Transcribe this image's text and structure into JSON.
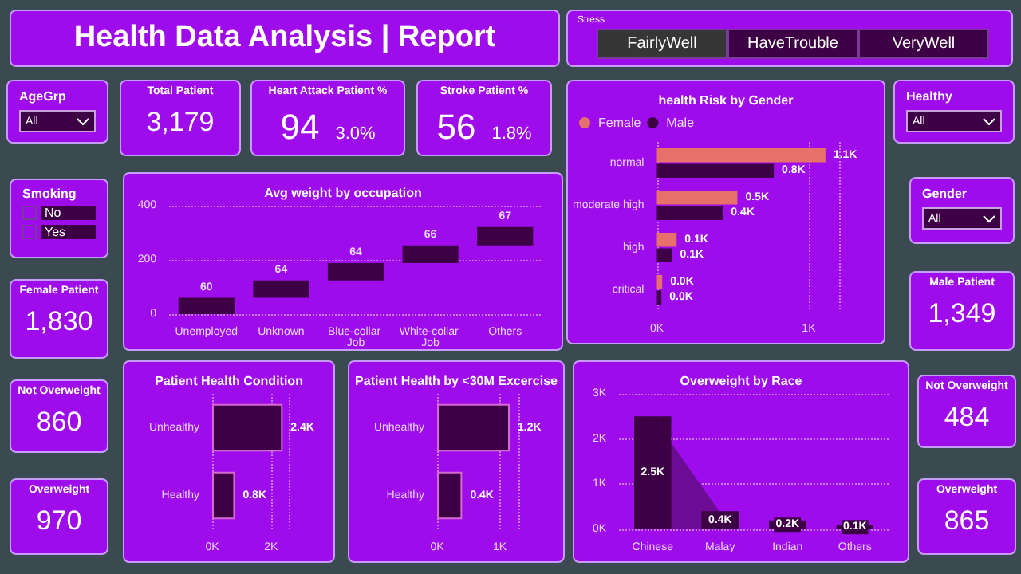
{
  "chart_data": [
    {
      "type": "other",
      "title": "Health Data Analysis | Report"
    },
    {
      "type": "other",
      "title": "Stress",
      "annotations": [
        "FairlyWell",
        "HaveTrouble",
        "VeryWell"
      ]
    },
    {
      "type": "other",
      "title": "AgeGrp",
      "annotations": [
        "All"
      ]
    },
    {
      "type": "other",
      "title": "Total Patient",
      "annotations": [
        "3,179"
      ]
    },
    {
      "type": "other",
      "title": "Heart Attack Patient %",
      "annotations": [
        "94",
        "3.0%"
      ]
    },
    {
      "type": "other",
      "title": "Stroke Patient %",
      "annotations": [
        "56",
        "1.8%"
      ]
    },
    {
      "type": "bar",
      "title": "health Risk by Gender",
      "orientation": "horizontal",
      "categories": [
        "normal",
        "moderate high",
        "high",
        "critical"
      ],
      "series": [
        {
          "name": "Female",
          "color": "#e8706a",
          "values": [
            1110,
            530,
            130,
            35
          ],
          "value_labels": [
            "1.1K",
            "0.5K",
            "0.1K",
            "0.0K"
          ]
        },
        {
          "name": "Male",
          "color": "#3d0045",
          "values": [
            770,
            435,
            100,
            30
          ],
          "value_labels": [
            "0.8K",
            "0.4K",
            "0.1K",
            "0.0K"
          ]
        }
      ],
      "xlim": [
        0,
        1200
      ],
      "xticks": [
        {
          "value": 0,
          "label": "0K"
        },
        {
          "value": 1000,
          "label": "1K"
        }
      ],
      "grid": "x",
      "legend": "top left"
    },
    {
      "type": "other",
      "title": "Healthy",
      "annotations": [
        "All"
      ]
    },
    {
      "type": "other",
      "title": "Smoking",
      "annotations": [
        "No",
        "Yes"
      ]
    },
    {
      "type": "bar",
      "title": "Avg weight by occupation",
      "categories": [
        "Unemployed",
        "Unknown",
        "Blue-collar Job",
        "White-collar Job",
        "Others"
      ],
      "base": [
        0,
        60,
        124,
        188,
        254
      ],
      "values": [
        60,
        64,
        64,
        66,
        67
      ],
      "color": "#3d0045",
      "ylim": [
        0,
        400
      ],
      "yticks": [
        0,
        200,
        400
      ],
      "grid": "y",
      "data_labels": true
    },
    {
      "type": "other",
      "title": "Gender",
      "annotations": [
        "All"
      ]
    },
    {
      "type": "other",
      "title": "Female Patient",
      "annotations": [
        "1,830"
      ]
    },
    {
      "type": "other",
      "title": "Male Patient",
      "annotations": [
        "1,349"
      ]
    },
    {
      "type": "other",
      "title": "Not Overweight",
      "annotations": [
        "860"
      ]
    },
    {
      "type": "bar",
      "title": "Patient Health Condition",
      "orientation": "horizontal",
      "categories": [
        "Unhealthy",
        "Healthy"
      ],
      "values": [
        2390,
        770
      ],
      "value_labels": [
        "2.4K",
        "0.8K"
      ],
      "color": "#3d0045",
      "xlim": [
        0,
        2600
      ],
      "xticks": [
        {
          "value": 0,
          "label": "0K"
        },
        {
          "value": 2000,
          "label": "2K"
        }
      ],
      "grid": "x"
    },
    {
      "type": "bar",
      "title": "Patient Health by <30M Excercise",
      "orientation": "horizontal",
      "categories": [
        "Unhealthy",
        "Healthy"
      ],
      "values": [
        1160,
        400
      ],
      "value_labels": [
        "1.2K",
        "0.4K"
      ],
      "color": "#3d0045",
      "xlim": [
        0,
        1300
      ],
      "xticks": [
        {
          "value": 0,
          "label": "0K"
        },
        {
          "value": 1000,
          "label": "1K"
        }
      ],
      "grid": "x"
    },
    {
      "type": "bar",
      "title": "Overweight by Race",
      "categories": [
        "Chinese",
        "Malay",
        "Indian",
        "Others"
      ],
      "series": [
        {
          "type": "area",
          "color": "#6c0c94",
          "values": [
            2500,
            370,
            null,
            null
          ]
        },
        {
          "type": "bar",
          "color": "#3d0045",
          "values": [
            2500,
            400,
            200,
            100
          ],
          "value_labels": [
            "2.5K",
            "0.4K",
            "0.2K",
            "0.1K"
          ]
        }
      ],
      "ylim": [
        0,
        3000
      ],
      "yticks": [
        {
          "value": 0,
          "label": "0K"
        },
        {
          "value": 1000,
          "label": "1K"
        },
        {
          "value": 2000,
          "label": "2K"
        },
        {
          "value": 3000,
          "label": "3K"
        }
      ],
      "grid": "y"
    },
    {
      "type": "other",
      "title": "Not Overweight",
      "annotations": [
        "484"
      ]
    },
    {
      "type": "other",
      "title": "Overweight",
      "annotations": [
        "970"
      ]
    },
    {
      "type": "other",
      "title": "Overweight",
      "annotations": [
        "865"
      ]
    }
  ]
}
